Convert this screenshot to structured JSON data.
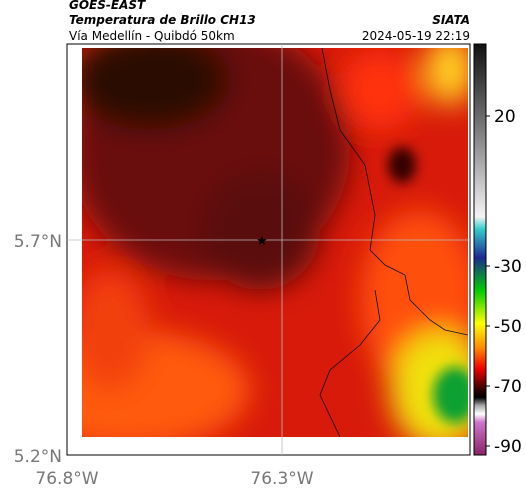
{
  "header": {
    "source": "GOES-EAST",
    "title": "Temperatura de Brillo CH13",
    "subtitle": "Vía Medellín - Quibdó 50km",
    "org": "SIATA",
    "datetime": "2024-05-19 22:19"
  },
  "map": {
    "lat_labels": [
      "5.7°N",
      "5.2°N"
    ],
    "lon_labels": [
      "76.8°W",
      "76.3°W"
    ]
  },
  "colorbar": {
    "clim": [
      -93,
      44
    ],
    "ticks": [
      20,
      -30,
      -50,
      -70,
      -90
    ]
  }
}
